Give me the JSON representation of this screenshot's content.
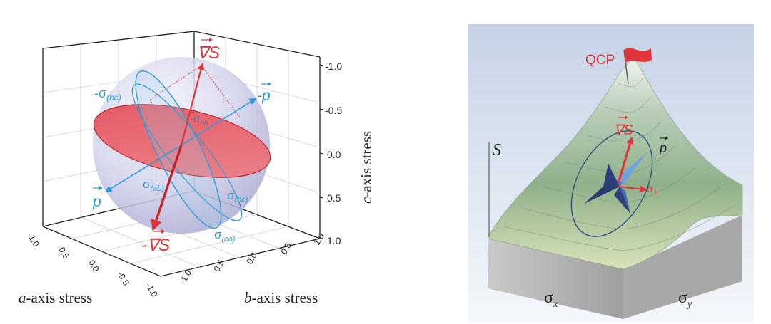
{
  "left_panel": {
    "labels": {
      "grad_s": "∇S",
      "neg_grad_s": "-∇S",
      "neg_sigma_bc": "-σ",
      "neg_sigma_bc_sub": "(bc)",
      "neg_sigma_ab": "-σ",
      "neg_sigma_ab_sub": "ab",
      "neg_p": "-p",
      "p": "p",
      "sigma_ab": "σ",
      "sigma_ab_sub": "(ab)",
      "sigma_bc": "σ",
      "sigma_bc_sub": "(bc)",
      "sigma_ca": "σ",
      "sigma_ca_sub": "(ca)"
    },
    "axes": {
      "c_label_italic": "c",
      "c_label_rest": "-axis stress",
      "a_label_italic": "a",
      "a_label_rest": "-axis stress",
      "b_label_italic": "b",
      "b_label_rest": "-axis stress",
      "c_ticks": [
        "-1.0",
        "-0.5",
        "0.0",
        "0.5",
        "1.0"
      ],
      "a_ticks": [
        "1.0",
        "0.5",
        "0.0",
        "-0.5",
        "-1.0"
      ],
      "b_ticks": [
        "1.0",
        "0.5",
        "0.0",
        "-0.5",
        "-1.0"
      ]
    }
  },
  "right_panel": {
    "labels": {
      "qcp": "QCP",
      "s_axis": "S",
      "grad_s": "∇S",
      "p": "p",
      "sigma_perp": "σ",
      "sigma_perp_sub": "⊥",
      "sigma_x": "σ",
      "sigma_x_sub": "x",
      "sigma_y": "σ",
      "sigma_y_sub": "y"
    }
  },
  "colors": {
    "red": "#e0353b",
    "blue": "#2f9bd6",
    "sphere": "#c9c9e6",
    "terrain_light": "#dfe7c8",
    "terrain_dark": "#7ea27a",
    "side_gray": "#b8b8b8",
    "sky": "#e4ebf5"
  }
}
